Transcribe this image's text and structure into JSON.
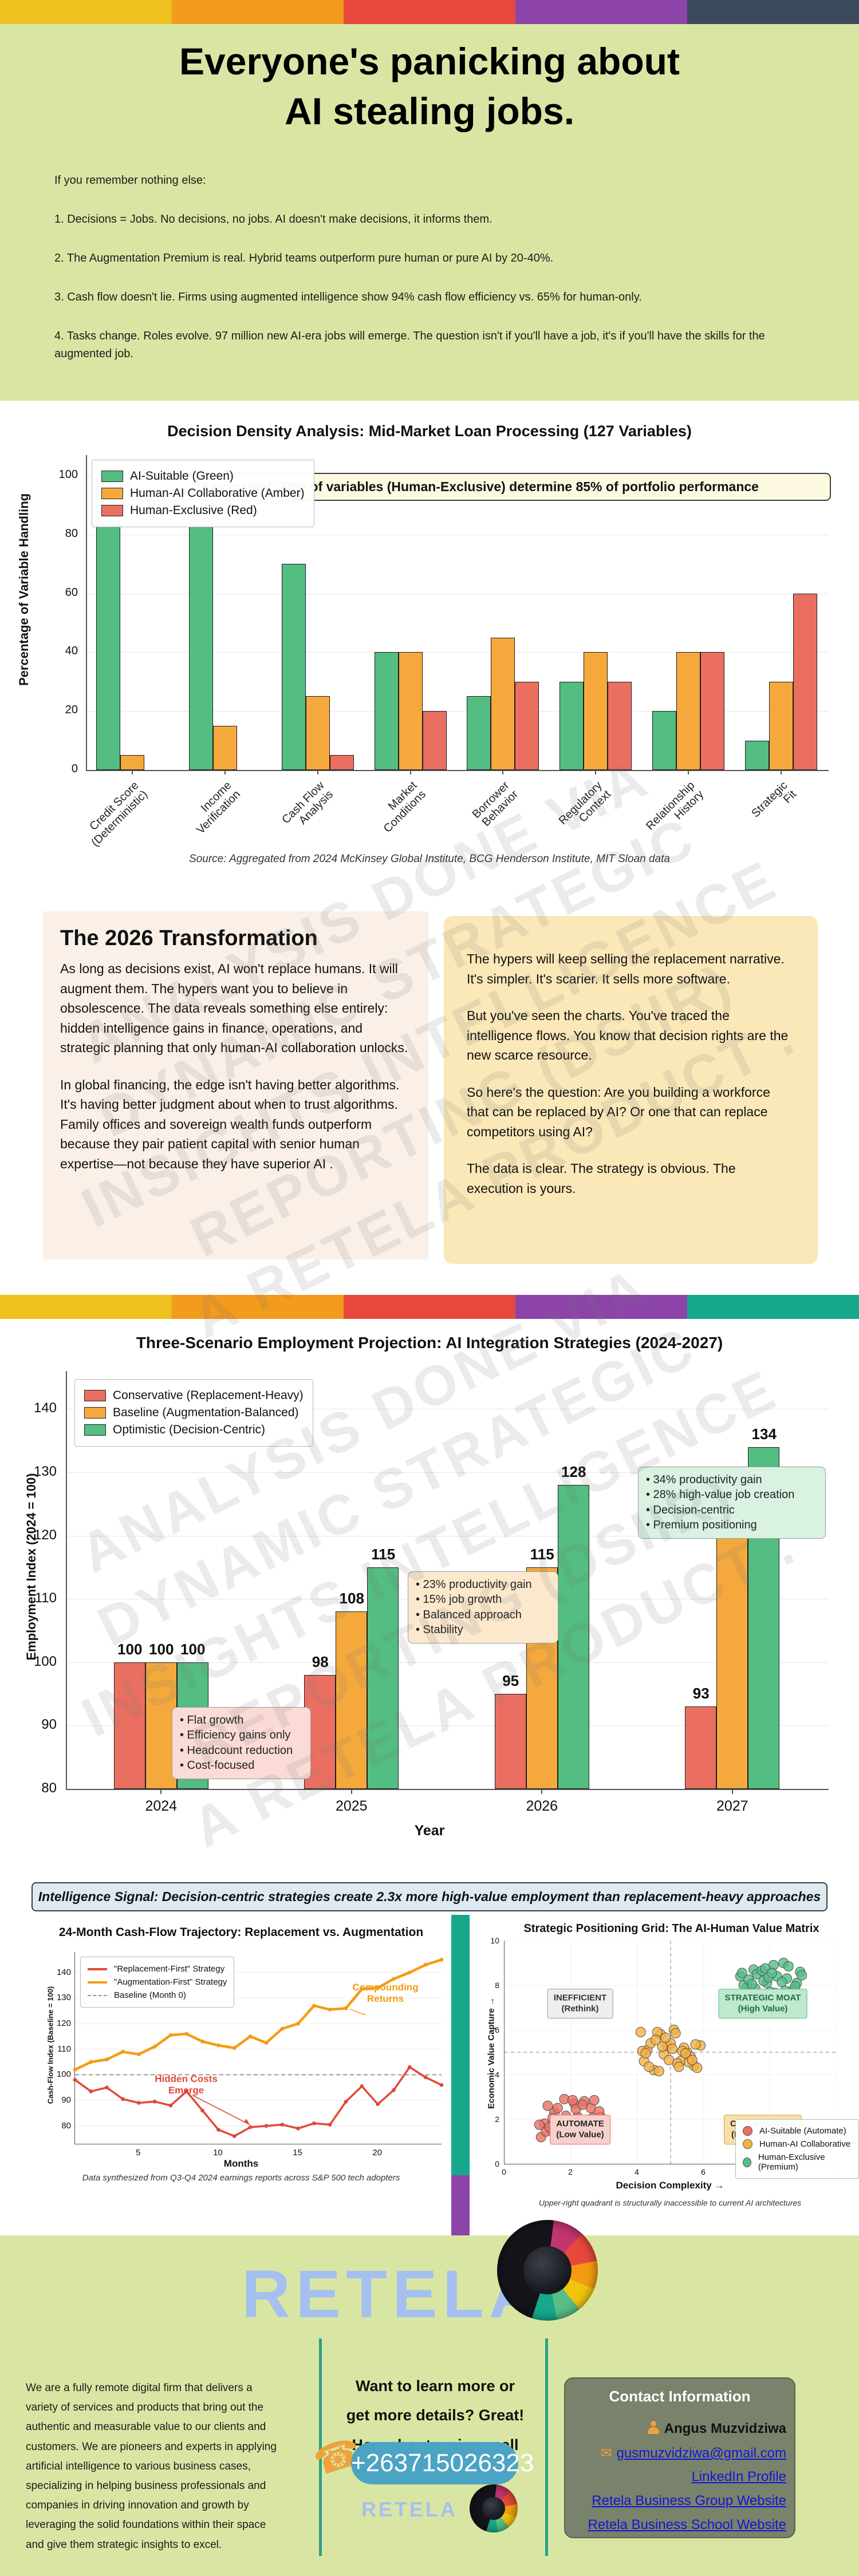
{
  "colors": {
    "stripe_top": [
      "#EEC11E",
      "#F39B1D",
      "#E74A3C",
      "#8C44A8",
      "#3A4A5C"
    ],
    "stripe_mid": [
      "#EEC11E",
      "#F39B1D",
      "#E74A3C",
      "#8C44A8",
      "#17A88B"
    ],
    "hero_bg": "#D9E6A3",
    "bar_green": "#53BD82",
    "bar_amber": "#F5A93C",
    "bar_red": "#EA6F61",
    "pill_blue": "#4BA4C4",
    "contact_box": "#79826A",
    "link_blue": "#1515D6",
    "strip_teal": "#17A88B",
    "strip_purple": "#8C44A8"
  },
  "hero": {
    "title_line1": "Everyone's panicking about",
    "title_line2": "AI stealing jobs.",
    "intro": [
      "If you remember nothing else:",
      "1. Decisions = Jobs. No decisions, no jobs. AI doesn't make decisions, it informs them.",
      "2. The Augmentation Premium is real. Hybrid teams outperform pure human or pure AI by 20-40%.",
      "3. Cash flow doesn't lie. Firms using augmented intelligence show 94% cash flow efficiency vs. 65% for human-only.",
      "4. Tasks change. Roles evolve. 97 million new AI-era jobs will emerge. The question isn't if you'll have a job, it's if you'll have the skills for the augmented job."
    ]
  },
  "section2026": {
    "heading": "The 2026 Transformation",
    "left_paragraphs": [
      "As long as decisions exist, AI won't replace humans. It will augment them. The hypers want you to believe in obsolescence. The data reveals something else entirely: hidden intelligence gains in finance, operations, and strategic planning that only human-AI collaboration unlocks.",
      "In global financing, the edge isn't having better algorithms. It's having better judgment about when to trust algorithms. Family offices and sovereign wealth funds outperform because they pair patient capital with senior human expertise—not because they have superior AI ."
    ],
    "right_paragraphs": [
      "The hypers will keep selling the replacement narrative. It's simpler. It's scarier. It sells more software.",
      "But you've seen the charts. You've traced the intelligence flows. You know that decision rights are the new scarce resource.",
      "So here's the question: Are you building a workforce that can be replaced by AI? Or one that can replace competitors using AI?",
      "The data is clear. The strategy is obvious. The execution is yours."
    ]
  },
  "watermark": {
    "lines": "ANALYSIS DONE VIA\nDYNAMIC STRATEGIC\nINSIGHTS INTELLIGENCE\nREPORTING (DSIIR)\nA RETELA PRODUCT ."
  },
  "intel_banner": "Intelligence Signal: Decision-centric strategies create 2.3x more high-value employment than replacement-heavy approaches",
  "chart_data": [
    {
      "type": "bar",
      "title": "Decision Density Analysis: Mid-Market Loan Processing (127 Variables)",
      "ylabel": "Percentage of Variable Handling",
      "xlabel": "",
      "categories": [
        "Credit Score\n(Deterministic)",
        "Income\nVerification",
        "Cash Flow\nAnalysis",
        "Market\nConditions",
        "Borrower\nBehavior",
        "Regulatory\nContext",
        "Relationship\nHistory",
        "Strategic\nFit"
      ],
      "series": [
        {
          "name": "AI-Suitable (Green)",
          "color": "#53BD82",
          "values": [
            100,
            85,
            70,
            40,
            25,
            30,
            20,
            10
          ]
        },
        {
          "name": "Human-AI Collaborative (Amber)",
          "color": "#F5A93C",
          "values": [
            5,
            15,
            25,
            40,
            45,
            40,
            40,
            30
          ]
        },
        {
          "name": "Human-Exclusive (Red)",
          "color": "#EA6F61",
          "values": [
            0,
            0,
            5,
            20,
            30,
            30,
            40,
            60
          ]
        }
      ],
      "ylim": [
        0,
        107
      ],
      "yticks": [
        0,
        20,
        40,
        60,
        80,
        100
      ],
      "grid": true,
      "legend_position": "upper left",
      "annotation": "Key Insight: 30% of variables (Human-Exclusive) determine 85% of portfolio performance",
      "source": "Source: Aggregated from 2024 McKinsey Global Institute, BCG Henderson Institute, MIT Sloan data"
    },
    {
      "type": "bar",
      "title": "Three-Scenario Employment Projection: AI Integration Strategies (2024-2027)",
      "xlabel": "Year",
      "ylabel": "Employment Index (2024 = 100)",
      "categories": [
        "2024",
        "2025",
        "2026",
        "2027"
      ],
      "series": [
        {
          "name": "Conservative (Replacement-Heavy)",
          "color": "#EA6F61",
          "values": [
            100,
            98,
            95,
            93
          ]
        },
        {
          "name": "Baseline (Augmentation-Balanced)",
          "color": "#F5A93C",
          "values": [
            100,
            108,
            115,
            123
          ]
        },
        {
          "name": "Optimistic (Decision-Centric)",
          "color": "#53BD82",
          "values": [
            100,
            115,
            128,
            134
          ]
        }
      ],
      "ylim": [
        80,
        146
      ],
      "yticks": [
        80,
        90,
        100,
        110,
        120,
        130,
        140
      ],
      "grid": true,
      "legend_position": "upper left",
      "value_labels": true,
      "callouts": [
        {
          "lines": "• Flat growth\n• Efficiency gains only\n• Headcount reduction\n• Cost-focused",
          "bg": "#FBDBD6"
        },
        {
          "lines": "• 23% productivity gain\n• 15% job growth\n• Balanced approach\n• Stability",
          "bg": "#FCE9CD"
        },
        {
          "lines": "• 34% productivity gain\n• 28% high-value job creation\n• Decision-centric\n• Premium positioning",
          "bg": "#D9F2E2"
        }
      ]
    },
    {
      "type": "line",
      "title": "24-Month Cash-Flow Trajectory: Replacement vs. Augmentation",
      "xlabel": "Months",
      "ylabel": "Cash-Flow Index (Baseline = 100)",
      "x": [
        1,
        2,
        3,
        4,
        5,
        6,
        7,
        8,
        9,
        10,
        11,
        12,
        13,
        14,
        15,
        16,
        17,
        18,
        19,
        20,
        21,
        22,
        23,
        24
      ],
      "xticks": [
        5,
        10,
        15,
        20
      ],
      "yticks": [
        80,
        90,
        100,
        110,
        120,
        130,
        140
      ],
      "ylim": [
        73,
        148
      ],
      "series": [
        {
          "name": "\"Replacement-First\" Strategy",
          "color": "#E0493A",
          "values": [
            98,
            93.5,
            95,
            90.5,
            89,
            89.5,
            88,
            93.5,
            86,
            78.5,
            76,
            79.5,
            80,
            80.5,
            79,
            81,
            80.5,
            89.5,
            95.5,
            88.5,
            94,
            103,
            99,
            96
          ]
        },
        {
          "name": "\"Augmentation-First\" Strategy",
          "color": "#F39C12",
          "values": [
            102,
            105,
            106,
            109,
            108,
            111,
            115.5,
            116,
            113,
            111.5,
            110.5,
            115,
            112.5,
            118,
            120,
            127,
            125.5,
            126,
            133.5,
            134,
            137.5,
            140,
            143,
            145
          ]
        }
      ],
      "baseline": {
        "name": "Baseline (Month 0)",
        "value": 100
      },
      "annotations": [
        {
          "text": "Hidden Costs\nEmerge",
          "color": "#E0493A"
        },
        {
          "text": "Compounding\nReturns",
          "color": "#F39C12"
        }
      ],
      "caption": "Data synthesized from Q3-Q4 2024 earnings reports across S&P 500 tech adopters"
    },
    {
      "type": "scatter",
      "title": "Strategic Positioning Grid: The AI-Human Value Matrix",
      "xlabel": "Decision Complexity →",
      "ylabel": "Economic Value Capture →",
      "xlim": [
        0,
        10
      ],
      "ylim": [
        0,
        10
      ],
      "xticks": [
        0,
        2,
        4,
        6,
        8,
        10
      ],
      "yticks": [
        0,
        2,
        4,
        6,
        8,
        10
      ],
      "crosshair": [
        5,
        5
      ],
      "quadrants": [
        {
          "line1": "INEFFICIENT",
          "line2": "(Rethink)",
          "bg": "#EFEFEF",
          "border": "#999999",
          "text": "#333333"
        },
        {
          "line1": "STRATEGIC MOAT",
          "line2": "(High Value)",
          "bg": "#BFE8CF",
          "border": "#53BD82",
          "text": "#1E6B43"
        },
        {
          "line1": "AUTOMATE",
          "line2": "(Low Value)",
          "bg": "#F6D1CC",
          "border": "#EA6F61",
          "text": "#222222"
        },
        {
          "line1": "COLLABORATE",
          "line2": "(Medium Value)",
          "bg": "#F8DFA9",
          "border": "#E0A030",
          "text": "#222222"
        }
      ],
      "clusters": [
        {
          "name": "AI-Suitable (Automate)",
          "color": "#EA6F61",
          "points": [
            [
              1.2,
              1.8
            ],
            [
              1.5,
              2.3
            ],
            [
              1.8,
              2.9
            ],
            [
              2.1,
              2.7
            ],
            [
              1.1,
              1.2
            ],
            [
              1.4,
              1.5
            ],
            [
              2.4,
              2.8
            ],
            [
              2.6,
              2.5
            ],
            [
              2.2,
              2.1
            ],
            [
              1.9,
              1.7
            ],
            [
              2.8,
              1.6
            ],
            [
              2.9,
              2.1
            ],
            [
              1.6,
              2.5
            ],
            [
              1.3,
              2.6
            ],
            [
              2.0,
              1.1
            ],
            [
              2.3,
              1.3
            ],
            [
              2.5,
              1.9
            ],
            [
              1.7,
              1.3
            ],
            [
              1.05,
              1.75
            ],
            [
              2.7,
              2.85
            ],
            [
              1.45,
              2.05
            ],
            [
              2.15,
              2.45
            ],
            [
              2.55,
              1.45
            ],
            [
              1.85,
              2.15
            ],
            [
              2.95,
              1.15
            ],
            [
              1.25,
              1.45
            ],
            [
              2.35,
              2.65
            ],
            [
              1.65,
              1.95
            ],
            [
              2.05,
              2.85
            ],
            [
              1.95,
              1.25
            ],
            [
              2.65,
              2.05
            ],
            [
              1.35,
              1.65
            ],
            [
              2.45,
              1.75
            ],
            [
              1.55,
              1.15
            ],
            [
              2.85,
              2.35
            ]
          ]
        },
        {
          "name": "Human-AI Collaborative",
          "color": "#F5B041",
          "points": [
            [
              4.1,
              5.9
            ],
            [
              4.3,
              5.1
            ],
            [
              4.5,
              4.2
            ],
            [
              4.7,
              5.8
            ],
            [
              4.9,
              5.3
            ],
            [
              5.1,
              6.0
            ],
            [
              5.3,
              4.6
            ],
            [
              5.5,
              5.0
            ],
            [
              5.7,
              4.4
            ],
            [
              5.9,
              5.3
            ],
            [
              4.2,
              4.6
            ],
            [
              4.4,
              5.4
            ],
            [
              4.6,
              5.9
            ],
            [
              4.8,
              4.9
            ],
            [
              5.0,
              5.4
            ],
            [
              5.2,
              4.5
            ],
            [
              5.4,
              5.2
            ],
            [
              5.6,
              4.8
            ],
            [
              5.8,
              4.3
            ],
            [
              4.15,
              5.05
            ],
            [
              4.35,
              4.35
            ],
            [
              4.55,
              5.55
            ],
            [
              4.75,
              5.25
            ],
            [
              4.95,
              4.65
            ],
            [
              5.15,
              5.85
            ],
            [
              5.35,
              5.05
            ],
            [
              5.55,
              4.55
            ],
            [
              5.75,
              5.35
            ],
            [
              4.25,
              4.95
            ],
            [
              4.65,
              4.15
            ],
            [
              5.05,
              5.15
            ],
            [
              5.45,
              4.95
            ],
            [
              5.65,
              4.65
            ],
            [
              4.85,
              5.65
            ],
            [
              5.25,
              4.35
            ]
          ]
        },
        {
          "name": "Human-Exclusive (Premium)",
          "color": "#52BE8A",
          "points": [
            [
              7.1,
              8.4
            ],
            [
              7.3,
              7.9
            ],
            [
              7.5,
              8.7
            ],
            [
              7.7,
              7.6
            ],
            [
              7.9,
              8.1
            ],
            [
              8.1,
              8.9
            ],
            [
              8.3,
              7.4
            ],
            [
              8.5,
              8.3
            ],
            [
              8.7,
              7.8
            ],
            [
              8.9,
              8.6
            ],
            [
              7.2,
              8.0
            ],
            [
              7.4,
              7.5
            ],
            [
              7.6,
              8.5
            ],
            [
              7.8,
              8.2
            ],
            [
              8.0,
              7.7
            ],
            [
              8.2,
              8.4
            ],
            [
              8.4,
              9.0
            ],
            [
              8.6,
              7.5
            ],
            [
              8.8,
              8.1
            ],
            [
              7.15,
              8.55
            ],
            [
              7.35,
              8.25
            ],
            [
              7.55,
              7.85
            ],
            [
              7.75,
              8.65
            ],
            [
              7.95,
              8.35
            ],
            [
              8.15,
              7.65
            ],
            [
              8.35,
              8.15
            ],
            [
              8.55,
              8.85
            ],
            [
              8.75,
              7.95
            ],
            [
              8.95,
              8.45
            ],
            [
              7.45,
              8.05
            ],
            [
              7.65,
              7.45
            ],
            [
              7.85,
              8.75
            ],
            [
              8.05,
              8.55
            ],
            [
              8.25,
              7.35
            ],
            [
              8.45,
              7.75
            ]
          ]
        }
      ],
      "caption": "Upper-right quadrant is structurally inaccessible to current AI architectures"
    }
  ],
  "brand": {
    "wordmark": "RETELA"
  },
  "footer": {
    "about": "We are a fully remote digital firm that delivers a variety of services and products that bring out the authentic and measurable value to our clients and customers. We are pioneers and experts in applying artificial intelligence to various business cases, specializing in helping business professionals and companies in driving innovation and growth by leveraging the  solid foundations within their space and give them strategic insights to excel.",
    "cta_line1": "Want to learn more or",
    "cta_line2": "get more details? Great!",
    "cta_line3": "How about a nice - call",
    "phone": "+263715026323",
    "wordmark_small": "RETELA",
    "contact": {
      "title": "Contact Information",
      "name": "Angus Muzvidziwa",
      "email": "gusmuzvidziwa@gmail.com",
      "links": [
        "LinkedIn Profile",
        "Retela Business Group  Website",
        "Retela Business School  Website"
      ]
    }
  }
}
